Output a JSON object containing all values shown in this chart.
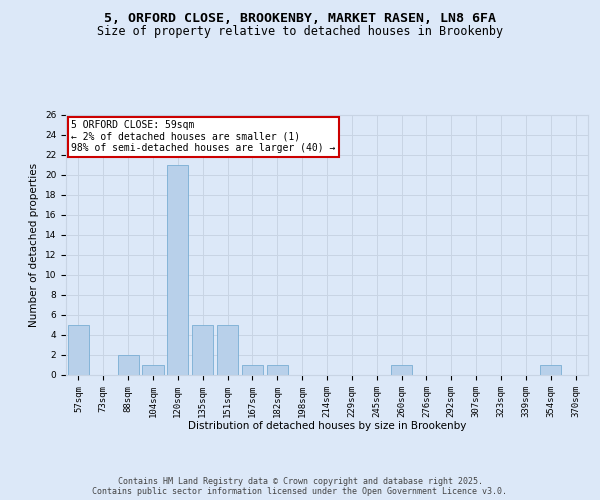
{
  "title_line1": "5, ORFORD CLOSE, BROOKENBY, MARKET RASEN, LN8 6FA",
  "title_line2": "Size of property relative to detached houses in Brookenby",
  "xlabel": "Distribution of detached houses by size in Brookenby",
  "ylabel": "Number of detached properties",
  "categories": [
    "57sqm",
    "73sqm",
    "88sqm",
    "104sqm",
    "120sqm",
    "135sqm",
    "151sqm",
    "167sqm",
    "182sqm",
    "198sqm",
    "214sqm",
    "229sqm",
    "245sqm",
    "260sqm",
    "276sqm",
    "292sqm",
    "307sqm",
    "323sqm",
    "339sqm",
    "354sqm",
    "370sqm"
  ],
  "values": [
    5,
    0,
    2,
    1,
    21,
    5,
    5,
    1,
    1,
    0,
    0,
    0,
    0,
    1,
    0,
    0,
    0,
    0,
    0,
    1,
    0
  ],
  "bar_color": "#b8d0ea",
  "bar_edge_color": "#7aaed4",
  "annotation_box_text": "5 ORFORD CLOSE: 59sqm\n← 2% of detached houses are smaller (1)\n98% of semi-detached houses are larger (40) →",
  "annotation_box_color": "#ffffff",
  "annotation_box_edge_color": "#cc0000",
  "annotation_text_color": "#000000",
  "grid_color": "#c8d4e4",
  "bg_color": "#dce8f8",
  "plot_bg_color": "#dce8f8",
  "ylim": [
    0,
    26
  ],
  "yticks": [
    0,
    2,
    4,
    6,
    8,
    10,
    12,
    14,
    16,
    18,
    20,
    22,
    24,
    26
  ],
  "footer_text": "Contains HM Land Registry data © Crown copyright and database right 2025.\nContains public sector information licensed under the Open Government Licence v3.0.",
  "title_fontsize": 9.5,
  "subtitle_fontsize": 8.5,
  "axis_label_fontsize": 7.5,
  "tick_fontsize": 6.5,
  "annotation_fontsize": 7,
  "footer_fontsize": 6
}
